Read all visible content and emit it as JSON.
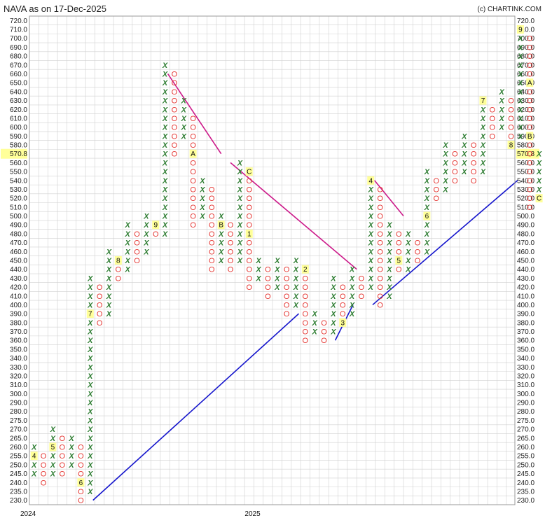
{
  "title": "NAVA as on 17-Dec-2025",
  "credit": "(c) CHARTINK.COM",
  "current_price_label": "570.8",
  "colors": {
    "x": "#2e7d32",
    "o": "#e53935",
    "marker_bg": "#ffff99",
    "support": "#1515cc",
    "resistance": "#cc1a8a",
    "grid": "#d0d0d0"
  },
  "chart_data": {
    "type": "point-and-figure",
    "title": "NAVA as on 17-Dec-2025",
    "box_size": 5,
    "ylim": [
      230,
      720
    ],
    "y_ticks": [
      "720.0",
      "710.0",
      "700.0",
      "690.0",
      "680.0",
      "670.0",
      "660.0",
      "650.0",
      "640.0",
      "630.0",
      "620.0",
      "610.0",
      "600.0",
      "590.0",
      "580.0",
      "570.8",
      "560.0",
      "550.0",
      "540.0",
      "530.0",
      "520.0",
      "510.0",
      "500.0",
      "490.0",
      "480.0",
      "470.0",
      "460.0",
      "450.0",
      "440.0",
      "430.0",
      "420.0",
      "410.0",
      "400.0",
      "390.0",
      "380.0",
      "370.0",
      "360.0",
      "350.0",
      "340.0",
      "330.0",
      "320.0",
      "310.0",
      "300.0",
      "290.0",
      "280.0",
      "275.0",
      "270.0",
      "265.0",
      "260.0",
      "255.0",
      "250.0",
      "245.0",
      "240.0",
      "235.0",
      "230.0"
    ],
    "x_labels": [
      {
        "column": 0,
        "text": "2024"
      },
      {
        "column": 24,
        "text": "2025"
      }
    ],
    "columns": [
      {
        "type": "X",
        "low": 245,
        "high": 260,
        "markers": [
          {
            "price": 255,
            "text": "4"
          }
        ]
      },
      {
        "type": "O",
        "low": 240,
        "high": 255
      },
      {
        "type": "X",
        "low": 245,
        "high": 270,
        "markers": [
          {
            "price": 260,
            "text": "5"
          }
        ]
      },
      {
        "type": "O",
        "low": 245,
        "high": 265
      },
      {
        "type": "X",
        "low": 250,
        "high": 265
      },
      {
        "type": "O",
        "low": 230,
        "high": 260,
        "markers": [
          {
            "price": 240,
            "text": "6"
          }
        ]
      },
      {
        "type": "X",
        "low": 235,
        "high": 425,
        "markers": [
          {
            "price": 390,
            "text": "7"
          }
        ]
      },
      {
        "type": "O",
        "low": 380,
        "high": 415
      },
      {
        "type": "X",
        "low": 390,
        "high": 455
      },
      {
        "type": "O",
        "low": 430,
        "high": 445,
        "markers": [
          {
            "price": 450,
            "text": "8"
          }
        ]
      },
      {
        "type": "X",
        "low": 440,
        "high": 490
      },
      {
        "type": "O",
        "low": 450,
        "high": 480
      },
      {
        "type": "X",
        "low": 460,
        "high": 500
      },
      {
        "type": "O",
        "low": 480,
        "high": 490,
        "markers": [
          {
            "price": 490,
            "text": "9"
          }
        ]
      },
      {
        "type": "X",
        "low": 480,
        "high": 670
      },
      {
        "type": "O",
        "low": 570,
        "high": 660
      },
      {
        "type": "X",
        "low": 590,
        "high": 630
      },
      {
        "type": "O",
        "low": 490,
        "high": 610,
        "markers": [
          {
            "price": 570,
            "text": "A"
          }
        ]
      },
      {
        "type": "X",
        "low": 500,
        "high": 540
      },
      {
        "type": "O",
        "low": 440,
        "high": 530
      },
      {
        "type": "X",
        "low": 450,
        "high": 500,
        "markers": [
          {
            "price": 490,
            "text": "B"
          }
        ]
      },
      {
        "type": "O",
        "low": 440,
        "high": 490
      },
      {
        "type": "X",
        "low": 450,
        "high": 560
      },
      {
        "type": "O",
        "low": 420,
        "high": 550,
        "markers": [
          {
            "price": 550,
            "text": "C"
          },
          {
            "price": 480,
            "text": "1"
          }
        ]
      },
      {
        "type": "X",
        "low": 430,
        "high": 450
      },
      {
        "type": "O",
        "low": 410,
        "high": 440
      },
      {
        "type": "X",
        "low": 420,
        "high": 450
      },
      {
        "type": "O",
        "low": 390,
        "high": 440
      },
      {
        "type": "X",
        "low": 400,
        "high": 450
      },
      {
        "type": "O",
        "low": 360,
        "high": 440,
        "markers": [
          {
            "price": 440,
            "text": "2"
          }
        ]
      },
      {
        "type": "X",
        "low": 370,
        "high": 390
      },
      {
        "type": "O",
        "low": 360,
        "high": 380
      },
      {
        "type": "X",
        "low": 370,
        "high": 430
      },
      {
        "type": "O",
        "low": 380,
        "high": 420,
        "markers": [
          {
            "price": 380,
            "text": "3"
          }
        ]
      },
      {
        "type": "X",
        "low": 390,
        "high": 440
      },
      {
        "type": "O",
        "low": 410,
        "high": 430
      },
      {
        "type": "X",
        "low": 420,
        "high": 540,
        "markers": [
          {
            "price": 540,
            "text": "4"
          }
        ]
      },
      {
        "type": "O",
        "low": 400,
        "high": 530
      },
      {
        "type": "X",
        "low": 410,
        "high": 490
      },
      {
        "type": "O",
        "low": 440,
        "high": 480,
        "markers": [
          {
            "price": 450,
            "text": "5"
          }
        ]
      },
      {
        "type": "X",
        "low": 440,
        "high": 480
      },
      {
        "type": "O",
        "low": 450,
        "high": 470
      },
      {
        "type": "X",
        "low": 460,
        "high": 550,
        "markers": [
          {
            "price": 500,
            "text": "6"
          }
        ]
      },
      {
        "type": "O",
        "low": 520,
        "high": 540
      },
      {
        "type": "X",
        "low": 530,
        "high": 580
      },
      {
        "type": "O",
        "low": 540,
        "high": 570
      },
      {
        "type": "X",
        "low": 550,
        "high": 590
      },
      {
        "type": "O",
        "low": 540,
        "high": 580
      },
      {
        "type": "X",
        "low": 550,
        "high": 630,
        "markers": [
          {
            "price": 630,
            "text": "7"
          }
        ]
      },
      {
        "type": "O",
        "low": 590,
        "high": 620
      },
      {
        "type": "X",
        "low": 600,
        "high": 640
      },
      {
        "type": "O",
        "low": 580,
        "high": 630,
        "markers": [
          {
            "price": 580,
            "text": "8"
          }
        ]
      },
      {
        "type": "X",
        "low": 590,
        "high": 710,
        "markers": [
          {
            "price": 710,
            "text": "9"
          }
        ]
      },
      {
        "type": "O",
        "low": 510,
        "high": 700,
        "markers": [
          {
            "price": 650,
            "text": "A"
          },
          {
            "price": 590,
            "text": "B"
          }
        ]
      },
      {
        "type": "X",
        "low": 520,
        "high": 570.8,
        "markers": [
          {
            "price": 520,
            "text": "C"
          }
        ]
      }
    ],
    "trendlines": [
      {
        "kind": "support",
        "from": {
          "column": 6.3,
          "price": 230
        },
        "to": {
          "column": 28.3,
          "price": 390
        }
      },
      {
        "kind": "support",
        "from": {
          "column": 32.2,
          "price": 360
        },
        "to": {
          "column": 34.1,
          "price": 400
        }
      },
      {
        "kind": "support",
        "from": {
          "column": 36.2,
          "price": 400
        },
        "to": {
          "column": 51.7,
          "price": 540
        }
      },
      {
        "kind": "resistance",
        "from": {
          "column": 14.3,
          "price": 660
        },
        "to": {
          "column": 20,
          "price": 570
        }
      },
      {
        "kind": "resistance",
        "from": {
          "column": 21,
          "price": 560
        },
        "to": {
          "column": 34.5,
          "price": 440
        }
      },
      {
        "kind": "resistance",
        "from": {
          "column": 36.4,
          "price": 540
        },
        "to": {
          "column": 39.5,
          "price": 500
        }
      }
    ]
  }
}
